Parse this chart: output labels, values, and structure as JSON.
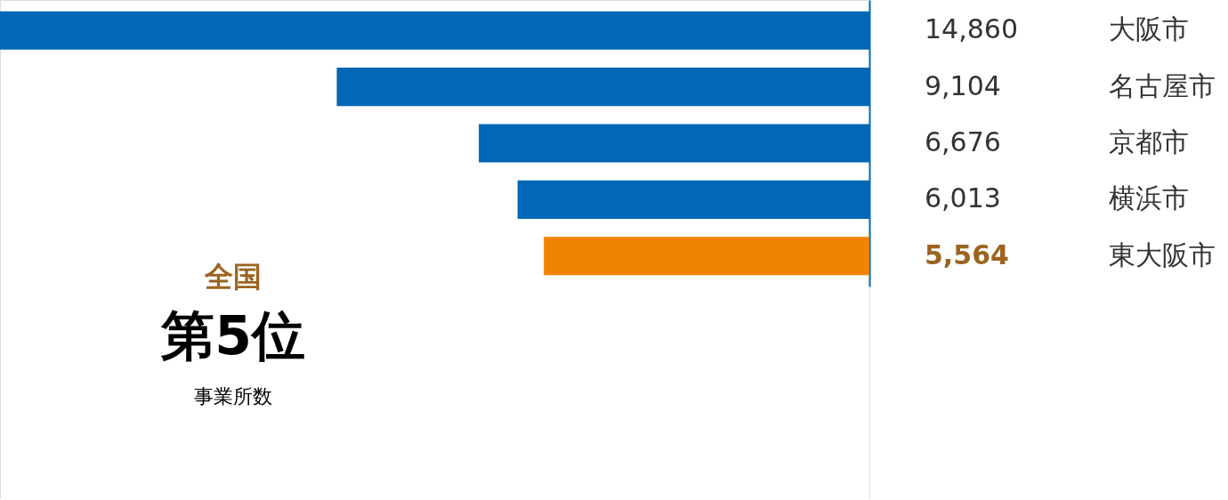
{
  "chart_data": {
    "type": "bar",
    "orientation": "horizontal",
    "categories": [
      "大阪市",
      "名古屋市",
      "京都市",
      "横浜市",
      "東大阪市"
    ],
    "values": [
      14860,
      9104,
      6676,
      6013,
      5564
    ],
    "value_labels": [
      "14,860",
      "9,104",
      "6,676",
      "6,013",
      "5,564"
    ],
    "colors": [
      "#0068b7",
      "#0068b7",
      "#0068b7",
      "#0068b7",
      "#f08300"
    ],
    "annotations": [
      "全国",
      "第5位",
      "事業所数"
    ],
    "grid": false
  }
}
